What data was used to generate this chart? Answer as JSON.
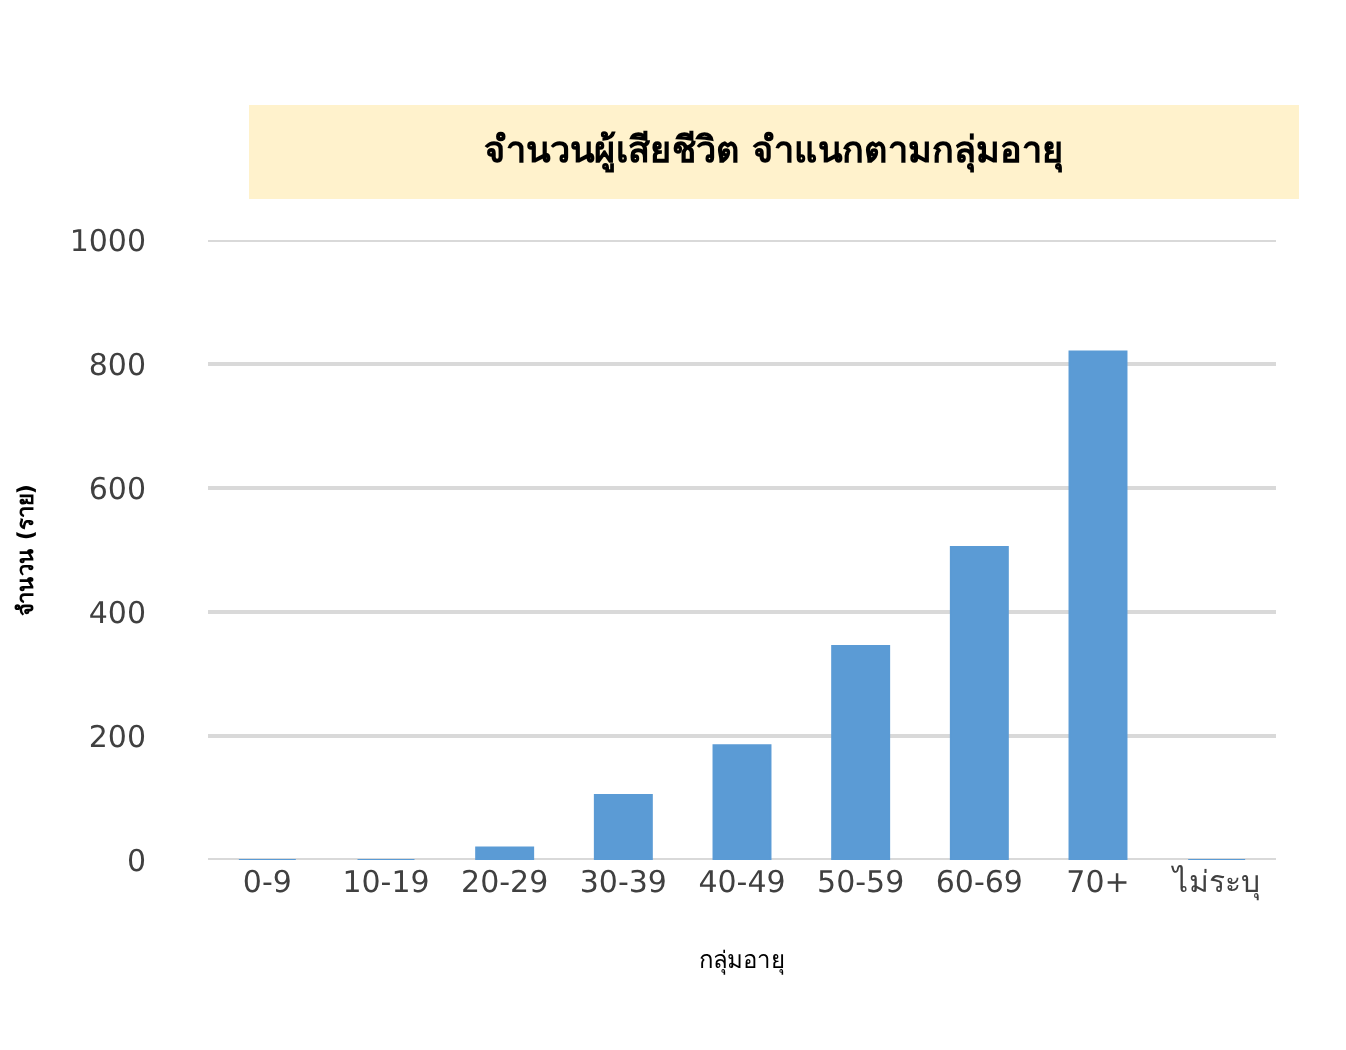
{
  "chart_data": {
    "type": "bar",
    "title": "จำนวนผู้เสียชีวิต จำแนกตามกลุ่มอายุ",
    "xlabel": "กลุ่มอายุ",
    "ylabel": "จำนวน (ราย)",
    "categories": [
      "0-9",
      "10-19",
      "20-29",
      "30-39",
      "40-49",
      "50-59",
      "60-69",
      "70+",
      "ไม่ระบุ"
    ],
    "values": [
      0,
      0,
      20,
      105,
      185,
      345,
      505,
      820,
      0
    ],
    "color": "#5b9bd5",
    "ylim": [
      0,
      1000
    ],
    "yticks": [
      0,
      200,
      400,
      600,
      800,
      1000
    ],
    "grid": "y",
    "legend": false
  }
}
